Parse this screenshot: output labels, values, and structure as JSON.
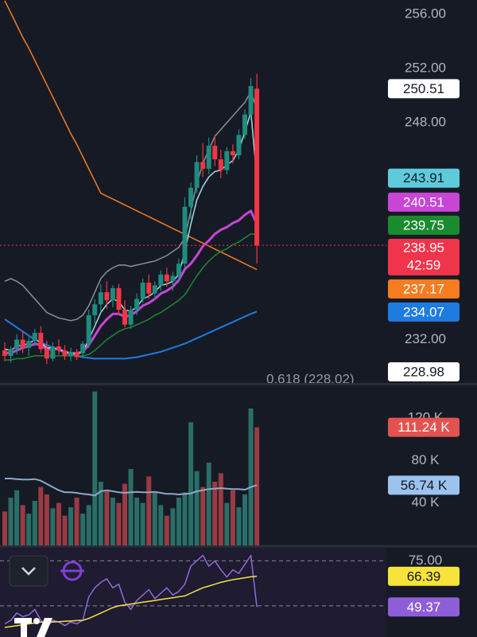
{
  "chart_data": [
    {
      "type": "candlestick",
      "ylim": [
        228.8,
        257.05
      ],
      "yticks": [
        {
          "value": 256,
          "label": "256.00"
        },
        {
          "value": 252,
          "label": "252.00"
        },
        {
          "value": 248,
          "label": "248.00"
        },
        {
          "value": 232,
          "label": "232.00"
        }
      ],
      "up_color": "#1e8c7e",
      "down_color": "#f23645",
      "candles": [
        [
          231.2,
          231.8,
          230.4,
          230.8
        ],
        [
          230.8,
          231.5,
          230.3,
          231.3
        ],
        [
          231.3,
          232.4,
          230.9,
          232.0
        ],
        [
          232.0,
          232.6,
          231.0,
          231.4
        ],
        [
          231.4,
          232.2,
          230.8,
          231.9
        ],
        [
          231.9,
          232.8,
          231.5,
          232.5
        ],
        [
          232.5,
          233.0,
          231.0,
          231.3
        ],
        [
          231.3,
          231.9,
          230.2,
          230.6
        ],
        [
          230.6,
          231.8,
          230.4,
          231.5
        ],
        [
          231.5,
          232.0,
          230.9,
          231.2
        ],
        [
          231.2,
          231.6,
          230.5,
          230.8
        ],
        [
          230.8,
          231.4,
          230.4,
          231.1
        ],
        [
          231.1,
          231.3,
          230.5,
          230.7
        ],
        [
          231.0,
          231.9,
          230.7,
          231.7
        ],
        [
          231.7,
          234.2,
          231.4,
          233.8
        ],
        [
          233.8,
          235.0,
          233.2,
          234.6
        ],
        [
          234.6,
          236.1,
          234.0,
          235.5
        ],
        [
          235.5,
          236.3,
          234.3,
          234.9
        ],
        [
          234.9,
          236.0,
          234.4,
          235.8
        ],
        [
          235.8,
          236.1,
          233.8,
          234.2
        ],
        [
          234.2,
          234.9,
          232.9,
          233.1
        ],
        [
          233.1,
          234.5,
          232.8,
          234.2
        ],
        [
          234.2,
          235.4,
          233.8,
          235.0
        ],
        [
          235.0,
          236.5,
          234.7,
          236.2
        ],
        [
          236.2,
          236.8,
          235.0,
          235.4
        ],
        [
          235.4,
          236.3,
          234.9,
          236.0
        ],
        [
          236.0,
          237.1,
          235.6,
          236.8
        ],
        [
          236.8,
          237.3,
          235.9,
          236.3
        ],
        [
          236.3,
          237.0,
          235.6,
          236.7
        ],
        [
          236.7,
          238.0,
          236.2,
          237.6
        ],
        [
          237.6,
          242.5,
          237.3,
          241.8
        ],
        [
          241.8,
          243.6,
          240.9,
          243.2
        ],
        [
          243.2,
          245.6,
          242.8,
          245.1
        ],
        [
          245.1,
          246.5,
          244.0,
          244.6
        ],
        [
          244.6,
          246.9,
          244.2,
          246.3
        ],
        [
          246.3,
          247.1,
          244.8,
          245.3
        ],
        [
          245.3,
          246.0,
          243.9,
          244.5
        ],
        [
          244.5,
          246.2,
          244.2,
          245.9
        ],
        [
          245.9,
          246.4,
          245.0,
          245.6
        ],
        [
          245.6,
          247.5,
          245.3,
          247.1
        ],
        [
          247.1,
          249.0,
          246.8,
          248.6
        ],
        [
          248.6,
          251.3,
          248.2,
          250.7
        ],
        [
          250.51,
          251.6,
          237.6,
          238.95
        ]
      ],
      "series": [
        {
          "color": "#8c8f99",
          "width": 1.5,
          "values": [
            236.3,
            236.5,
            236.3,
            236.0,
            235.5,
            235.0,
            234.5,
            234.0,
            233.8,
            233.6,
            233.5,
            233.4,
            233.5,
            233.8,
            234.5,
            235.5,
            236.5,
            237.0,
            237.3,
            237.5,
            237.5,
            237.4,
            237.5,
            237.6,
            237.7,
            237.8,
            238.0,
            238.2,
            238.5,
            238.8,
            239.5,
            241.5,
            243.5,
            245.0,
            246.0,
            247.0,
            247.5,
            248.0,
            248.5,
            249.0,
            249.5,
            250.3,
            249.0
          ]
        },
        {
          "color": "#f57c1f",
          "width": 1.5,
          "values": [
            257,
            256.1,
            255.2,
            254.3,
            253.5,
            252.6,
            251.7,
            250.8,
            249.9,
            249.0,
            248.1,
            247.2,
            246.4,
            245.5,
            244.6,
            243.7,
            242.8,
            242.58,
            242.37,
            242.15,
            241.93,
            241.72,
            241.5,
            241.28,
            241.07,
            240.85,
            240.63,
            240.42,
            240.2,
            239.98,
            239.77,
            239.55,
            239.33,
            239.12,
            238.9,
            238.68,
            238.47,
            238.25,
            238.03,
            237.82,
            237.6,
            237.38,
            237.17
          ]
        },
        {
          "color": "#1e7be0",
          "width": 2,
          "values": [
            233.5,
            233.2,
            232.9,
            232.6,
            232.3,
            232.0,
            231.8,
            231.6,
            231.4,
            231.2,
            231.05,
            230.9,
            230.8,
            230.7,
            230.65,
            230.6,
            230.6,
            230.6,
            230.6,
            230.6,
            230.6,
            230.65,
            230.7,
            230.8,
            230.9,
            231.0,
            231.1,
            231.25,
            231.4,
            231.55,
            231.7,
            231.9,
            232.1,
            232.3,
            232.5,
            232.7,
            232.9,
            233.1,
            233.3,
            233.5,
            233.7,
            233.9,
            234.07
          ]
        },
        {
          "color": "#1a8b2e",
          "width": 1.5,
          "values": [
            230.5,
            230.5,
            230.6,
            230.6,
            230.7,
            230.8,
            230.8,
            230.8,
            230.8,
            230.8,
            230.8,
            230.8,
            230.8,
            230.8,
            230.9,
            231.2,
            231.6,
            232.0,
            232.3,
            232.6,
            232.8,
            232.9,
            233.1,
            233.3,
            233.5,
            233.8,
            234.0,
            234.3,
            234.6,
            234.9,
            235.3,
            236.0,
            236.7,
            237.3,
            237.8,
            238.2,
            238.5,
            238.7,
            239.0,
            239.2,
            239.5,
            239.8,
            239.75
          ]
        },
        {
          "color": "#c746d6",
          "width": 3,
          "values": [
            231.0,
            231.0,
            231.2,
            231.4,
            231.5,
            231.7,
            231.6,
            231.3,
            231.3,
            231.3,
            231.1,
            231.0,
            231.0,
            231.1,
            231.6,
            232.3,
            233.0,
            233.5,
            233.9,
            233.9,
            233.7,
            233.8,
            234.1,
            234.5,
            234.7,
            235.0,
            235.4,
            235.6,
            235.9,
            236.4,
            237.2,
            237.6,
            238.2,
            238.9,
            239.3,
            239.8,
            240.1,
            240.3,
            240.6,
            240.8,
            241.2,
            241.5,
            240.51
          ]
        },
        {
          "color": "#a9d8e6",
          "width": 1.5,
          "values": [
            231.3,
            231.2,
            231.5,
            231.6,
            231.7,
            232.0,
            231.8,
            231.4,
            231.4,
            231.3,
            231.1,
            231.0,
            230.9,
            231.1,
            232.0,
            233.0,
            234.0,
            234.6,
            235.0,
            234.8,
            234.2,
            234.1,
            234.4,
            235.0,
            235.2,
            235.5,
            236.0,
            236.1,
            236.3,
            236.8,
            238.5,
            240.5,
            242.3,
            243.3,
            244.0,
            244.4,
            244.5,
            244.9,
            245.2,
            246.0,
            247.3,
            248.8,
            243.91
          ]
        }
      ],
      "price_labels": [
        250.51,
        243.91,
        240.51,
        239.75,
        238.95,
        237.17,
        234.07,
        228.98
      ],
      "price_label_colors": [
        "#ffffff",
        "#5ecbdc",
        "#c746d6",
        "#1a8b2e",
        "#f0344a",
        "#f57c1f",
        "#1e7be0",
        "#ffffff"
      ],
      "price_label_text_colors": [
        "#131722",
        "#131722",
        "#ffffff",
        "#ffffff",
        "#ffffff",
        "#ffffff",
        "#ffffff",
        "#131722"
      ],
      "countdown": "42:59",
      "fib_label": "0.618 (228.02)"
    },
    {
      "type": "bar",
      "ylim": [
        0,
        150000
      ],
      "yticks": [
        {
          "value": 40000,
          "label": "40 K"
        },
        {
          "value": 80000,
          "label": "80 K"
        },
        {
          "value": 120000,
          "label": "120 K"
        }
      ],
      "up_color": "#2a6e67",
      "down_color": "#9a3b43",
      "values": [
        32000,
        45000,
        52000,
        38000,
        30000,
        42000,
        55000,
        48000,
        35000,
        40000,
        28000,
        36000,
        45000,
        30000,
        38000,
        145000,
        60000,
        52000,
        45000,
        40000,
        58000,
        72000,
        45000,
        40000,
        65000,
        50000,
        38000,
        28000,
        35000,
        45000,
        50000,
        116000,
        70000,
        55000,
        78000,
        60000,
        68000,
        40000,
        52000,
        36000,
        48000,
        129000,
        111240
      ],
      "series": [
        {
          "color": "#8ea8c8",
          "width": 2,
          "values": [
            63000,
            63000,
            62500,
            62000,
            62000,
            62500,
            61000,
            58000,
            55000,
            52000,
            50000,
            50000,
            49500,
            48500,
            48000,
            47000,
            51000,
            52000,
            51000,
            50000,
            49500,
            50000,
            50500,
            50000,
            50000,
            50500,
            49500,
            48500,
            48500,
            48000,
            48500,
            49000,
            51000,
            52000,
            53000,
            53500,
            54000,
            53500,
            53000,
            53000,
            52500,
            55000,
            56740
          ]
        }
      ],
      "price_labels": [
        {
          "value": 111240,
          "label": "111.24 K"
        },
        {
          "value": 56740,
          "label": "56.74 K"
        }
      ],
      "price_label_colors": [
        "#e2534f",
        "#9cc3ee"
      ],
      "price_label_text_colors": [
        "#ffffff",
        "#131722"
      ]
    },
    {
      "type": "line",
      "ylim": [
        32.7,
        82.2
      ],
      "yticks": [
        {
          "value": 75,
          "label": "75.00"
        }
      ],
      "levels": [
        50
      ],
      "grid": "dashed",
      "series": [
        {
          "color": "#8e6cdc",
          "width": 1.5,
          "values": [
            40,
            42,
            46,
            44,
            45,
            48,
            42,
            38,
            42,
            41,
            39,
            41,
            40,
            42,
            55,
            60,
            63,
            65,
            60,
            62,
            52,
            48,
            53,
            56,
            59,
            54,
            57,
            60,
            56,
            58,
            62,
            72,
            75,
            78,
            72,
            75,
            70,
            66,
            70,
            68,
            73,
            78,
            49.37
          ]
        },
        {
          "color": "#f5e04a",
          "width": 1.5,
          "values": [
            38,
            38.5,
            39,
            39.5,
            40,
            40.5,
            41,
            41,
            41,
            41.2,
            41.4,
            41.6,
            41.8,
            42,
            43,
            44.5,
            46,
            47.5,
            49,
            50,
            50.5,
            51,
            51.5,
            52,
            52.5,
            53,
            53.5,
            54,
            54.5,
            55,
            55.5,
            57,
            58.5,
            60,
            61,
            62,
            63,
            63.8,
            64.5,
            65,
            65.6,
            66.1,
            66.39
          ]
        }
      ],
      "price_labels": [
        66.39,
        49.37
      ],
      "price_label_colors": [
        "#f7e43a",
        "#8e5ed6"
      ],
      "price_label_text_colors": [
        "#131722",
        "#ffffff"
      ]
    }
  ]
}
